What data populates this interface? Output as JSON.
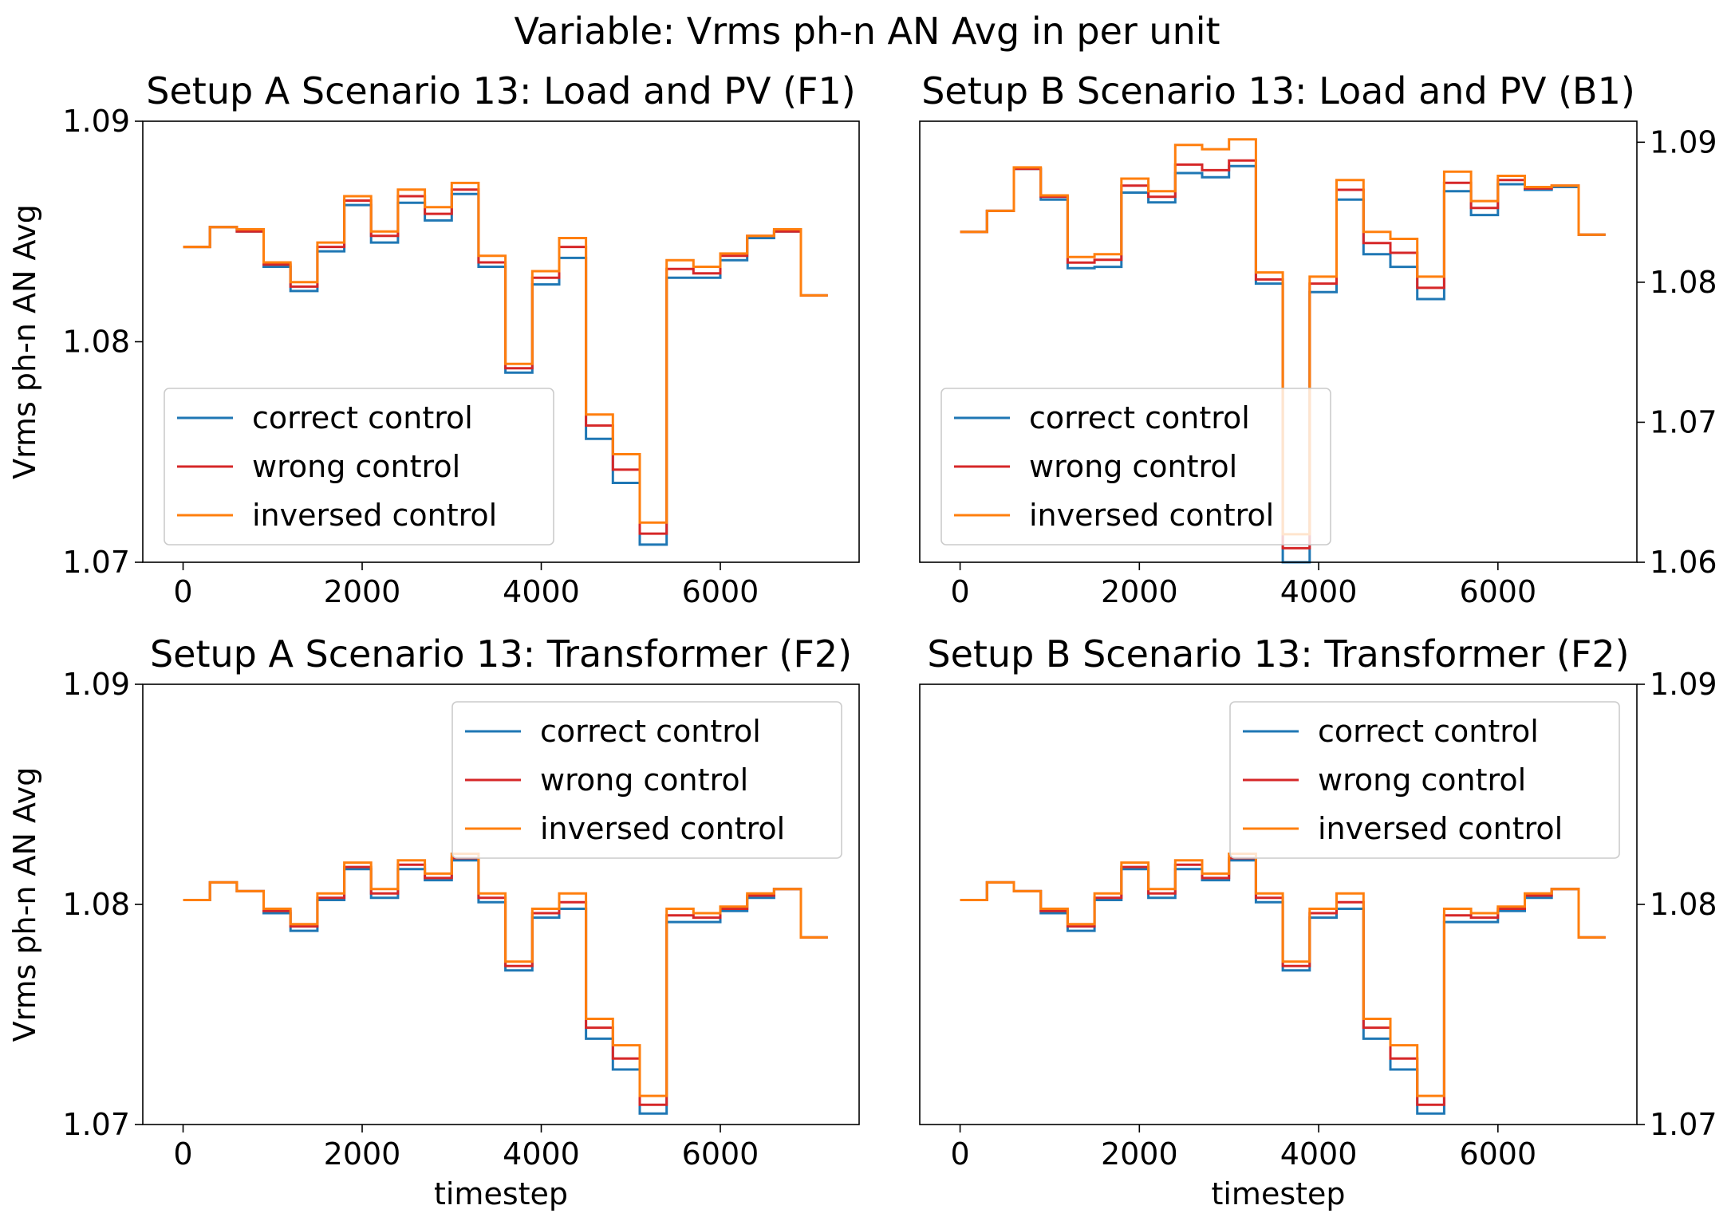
{
  "suptitle": "Variable: Vrms ph-n AN Avg in per unit",
  "colors": {
    "correct": "#1f77b4",
    "wrong": "#d62728",
    "inversed": "#ff7f0e"
  },
  "chart_data": [
    {
      "type": "line",
      "title": "Setup A Scenario 13: Load and PV (F1)",
      "xlabel": "",
      "ylabel": "Vrms ph-n AN Avg",
      "xlim": [
        -450,
        7550
      ],
      "ylim": [
        1.07,
        1.09
      ],
      "xticks": [
        0,
        2000,
        4000,
        6000
      ],
      "xtick_labels": [
        "0",
        "2000",
        "4000",
        "6000"
      ],
      "yticks": [
        1.07,
        1.08,
        1.09
      ],
      "ytick_labels": [
        "1.07",
        "1.08",
        "1.09"
      ],
      "yaxis_side": "left",
      "legend": "lower-left",
      "x": [
        0,
        300,
        600,
        900,
        1200,
        1500,
        1800,
        2100,
        2400,
        2700,
        3000,
        3300,
        3600,
        3900,
        4200,
        4500,
        4800,
        5100,
        5400,
        5700,
        6000,
        6300,
        6600,
        6900,
        7200
      ],
      "series": [
        {
          "name": "correct control",
          "color": "#1f77b4",
          "values": [
            1.0843,
            1.0852,
            1.085,
            1.0834,
            1.0823,
            1.0841,
            1.0862,
            1.0845,
            1.0863,
            1.0855,
            1.0867,
            1.0834,
            1.0786,
            1.0826,
            1.0838,
            1.0756,
            1.0736,
            1.0708,
            1.0829,
            1.0829,
            1.0837,
            1.0847,
            1.085,
            1.0821,
            1.0821
          ]
        },
        {
          "name": "wrong control",
          "color": "#d62728",
          "values": [
            1.0843,
            1.0852,
            1.085,
            1.0835,
            1.0825,
            1.0843,
            1.0864,
            1.0848,
            1.0866,
            1.0858,
            1.0869,
            1.0836,
            1.0788,
            1.0829,
            1.0843,
            1.0762,
            1.0742,
            1.0713,
            1.0833,
            1.0831,
            1.0839,
            1.0848,
            1.085,
            1.0821,
            1.0821
          ]
        },
        {
          "name": "inversed control",
          "color": "#ff7f0e",
          "values": [
            1.0843,
            1.0852,
            1.0851,
            1.0836,
            1.0827,
            1.0845,
            1.0866,
            1.085,
            1.0869,
            1.0861,
            1.0872,
            1.0839,
            1.079,
            1.0832,
            1.0847,
            1.0767,
            1.0749,
            1.0718,
            1.0837,
            1.0834,
            1.084,
            1.0848,
            1.0851,
            1.0821,
            1.0821
          ]
        }
      ]
    },
    {
      "type": "line",
      "title": "Setup B Scenario 13: Load and PV (B1)",
      "xlabel": "",
      "ylabel": "",
      "xlim": [
        -450,
        7550
      ],
      "ylim": [
        1.06,
        1.0915
      ],
      "xticks": [
        0,
        2000,
        4000,
        6000
      ],
      "xtick_labels": [
        "0",
        "2000",
        "4000",
        "6000"
      ],
      "yticks": [
        1.06,
        1.07,
        1.08,
        1.09
      ],
      "ytick_labels": [
        "1.06",
        "1.07",
        "1.08",
        "1.09"
      ],
      "yaxis_side": "right",
      "legend": "lower-left",
      "x": [
        0,
        300,
        600,
        900,
        1200,
        1500,
        1800,
        2100,
        2400,
        2700,
        3000,
        3300,
        3600,
        3900,
        4200,
        4500,
        4800,
        5100,
        5400,
        5700,
        6000,
        6300,
        6600,
        6900,
        7200
      ],
      "series": [
        {
          "name": "correct control",
          "color": "#1f77b4",
          "values": [
            1.0836,
            1.0851,
            1.0881,
            1.0859,
            1.081,
            1.0811,
            1.0864,
            1.0857,
            1.0878,
            1.0875,
            1.0883,
            1.0799,
            1.06,
            1.0793,
            1.0859,
            1.082,
            1.0811,
            1.0788,
            1.0865,
            1.0848,
            1.087,
            1.0866,
            1.0868,
            1.0834,
            1.0834
          ]
        },
        {
          "name": "wrong control",
          "color": "#d62728",
          "values": [
            1.0836,
            1.0851,
            1.0881,
            1.0861,
            1.0814,
            1.0816,
            1.0869,
            1.0861,
            1.0884,
            1.088,
            1.0887,
            1.0802,
            1.061,
            1.0799,
            1.0866,
            1.0828,
            1.0821,
            1.0796,
            1.0871,
            1.0853,
            1.0873,
            1.0867,
            1.0869,
            1.0834,
            1.0834
          ]
        },
        {
          "name": "inversed control",
          "color": "#ff7f0e",
          "values": [
            1.0836,
            1.0851,
            1.0882,
            1.0862,
            1.0818,
            1.082,
            1.0874,
            1.0865,
            1.0898,
            1.0895,
            1.0902,
            1.0807,
            1.062,
            1.0804,
            1.0873,
            1.0836,
            1.0831,
            1.0804,
            1.0879,
            1.0858,
            1.0876,
            1.0868,
            1.0869,
            1.0834,
            1.0834
          ]
        }
      ]
    },
    {
      "type": "line",
      "title": "Setup A Scenario 13: Transformer (F2)",
      "xlabel": "timestep",
      "ylabel": "Vrms ph-n AN Avg",
      "xlim": [
        -450,
        7550
      ],
      "ylim": [
        1.07,
        1.09
      ],
      "xticks": [
        0,
        2000,
        4000,
        6000
      ],
      "xtick_labels": [
        "0",
        "2000",
        "4000",
        "6000"
      ],
      "yticks": [
        1.07,
        1.08,
        1.09
      ],
      "ytick_labels": [
        "1.07",
        "1.08",
        "1.09"
      ],
      "yaxis_side": "left",
      "legend": "upper-right",
      "x": [
        0,
        300,
        600,
        900,
        1200,
        1500,
        1800,
        2100,
        2400,
        2700,
        3000,
        3300,
        3600,
        3900,
        4200,
        4500,
        4800,
        5100,
        5400,
        5700,
        6000,
        6300,
        6600,
        6900,
        7200
      ],
      "series": [
        {
          "name": "correct control",
          "color": "#1f77b4",
          "values": [
            1.0802,
            1.081,
            1.0806,
            1.0796,
            1.0788,
            1.0802,
            1.0816,
            1.0803,
            1.0816,
            1.0811,
            1.082,
            1.0801,
            1.077,
            1.0794,
            1.0798,
            1.0739,
            1.0725,
            1.0705,
            1.0792,
            1.0792,
            1.0797,
            1.0803,
            1.0807,
            1.0785,
            1.0785
          ]
        },
        {
          "name": "wrong control",
          "color": "#d62728",
          "values": [
            1.0802,
            1.081,
            1.0806,
            1.0797,
            1.079,
            1.0803,
            1.0817,
            1.0805,
            1.0818,
            1.0812,
            1.0821,
            1.0803,
            1.0772,
            1.0796,
            1.0801,
            1.0744,
            1.073,
            1.0709,
            1.0795,
            1.0794,
            1.0798,
            1.0804,
            1.0807,
            1.0785,
            1.0785
          ]
        },
        {
          "name": "inversed control",
          "color": "#ff7f0e",
          "values": [
            1.0802,
            1.081,
            1.0806,
            1.0798,
            1.0791,
            1.0805,
            1.0819,
            1.0807,
            1.082,
            1.0814,
            1.0823,
            1.0805,
            1.0774,
            1.0798,
            1.0805,
            1.0748,
            1.0736,
            1.0713,
            1.0798,
            1.0796,
            1.0799,
            1.0805,
            1.0807,
            1.0785,
            1.0785
          ]
        }
      ]
    },
    {
      "type": "line",
      "title": "Setup B Scenario 13: Transformer (F2)",
      "xlabel": "timestep",
      "ylabel": "",
      "xlim": [
        -450,
        7550
      ],
      "ylim": [
        1.07,
        1.09
      ],
      "xticks": [
        0,
        2000,
        4000,
        6000
      ],
      "xtick_labels": [
        "0",
        "2000",
        "4000",
        "6000"
      ],
      "yticks": [
        1.07,
        1.08,
        1.09
      ],
      "ytick_labels": [
        "1.07",
        "1.08",
        "1.09"
      ],
      "yaxis_side": "right",
      "legend": "upper-right",
      "x": [
        0,
        300,
        600,
        900,
        1200,
        1500,
        1800,
        2100,
        2400,
        2700,
        3000,
        3300,
        3600,
        3900,
        4200,
        4500,
        4800,
        5100,
        5400,
        5700,
        6000,
        6300,
        6600,
        6900,
        7200
      ],
      "series": [
        {
          "name": "correct control",
          "color": "#1f77b4",
          "values": [
            1.0802,
            1.081,
            1.0806,
            1.0796,
            1.0788,
            1.0802,
            1.0816,
            1.0803,
            1.0816,
            1.0811,
            1.082,
            1.0801,
            1.077,
            1.0794,
            1.0798,
            1.0739,
            1.0725,
            1.0705,
            1.0792,
            1.0792,
            1.0797,
            1.0803,
            1.0807,
            1.0785,
            1.0785
          ]
        },
        {
          "name": "wrong control",
          "color": "#d62728",
          "values": [
            1.0802,
            1.081,
            1.0806,
            1.0797,
            1.079,
            1.0803,
            1.0817,
            1.0805,
            1.0818,
            1.0812,
            1.0821,
            1.0803,
            1.0772,
            1.0796,
            1.0801,
            1.0744,
            1.073,
            1.0709,
            1.0795,
            1.0794,
            1.0798,
            1.0804,
            1.0807,
            1.0785,
            1.0785
          ]
        },
        {
          "name": "inversed control",
          "color": "#ff7f0e",
          "values": [
            1.0802,
            1.081,
            1.0806,
            1.0798,
            1.0791,
            1.0805,
            1.0819,
            1.0807,
            1.082,
            1.0814,
            1.0823,
            1.0805,
            1.0774,
            1.0798,
            1.0805,
            1.0748,
            1.0736,
            1.0713,
            1.0798,
            1.0796,
            1.0799,
            1.0805,
            1.0807,
            1.0785,
            1.0785
          ]
        }
      ]
    }
  ]
}
